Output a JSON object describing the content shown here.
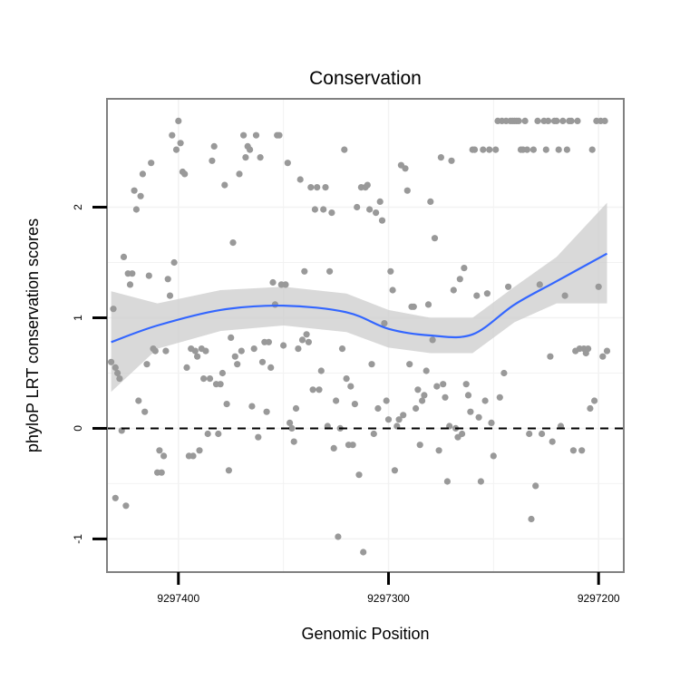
{
  "chart_data": {
    "type": "scatter",
    "title": "Conservation",
    "xlabel": "Genomic Position",
    "ylabel": "phyloP LRT conservation scores",
    "x_reversed": true,
    "xlim": [
      9297434,
      9297188
    ],
    "ylim": [
      -1.3,
      2.98
    ],
    "x_ticks": [
      9297400,
      9297300,
      9297200
    ],
    "x_tick_labels": [
      "9297400",
      "9297300",
      "9297200"
    ],
    "y_ticks": [
      -1,
      0,
      1,
      2
    ],
    "y_tick_labels": [
      "-1",
      "0",
      "1",
      "2"
    ],
    "reference_line": {
      "y": 0,
      "style": "dashed"
    },
    "grid": true,
    "colors": {
      "points": "#999999",
      "smooth": "#3366ff",
      "band": "#cccccc",
      "panel_border": "#808080",
      "grid": "#f2f2f2"
    },
    "points": [
      [
        9297431,
        1.08
      ],
      [
        9297432,
        0.6
      ],
      [
        9297430,
        0.55
      ],
      [
        9297429,
        0.5
      ],
      [
        9297428,
        0.45
      ],
      [
        9297430,
        -0.63
      ],
      [
        9297425,
        -0.7
      ],
      [
        9297427,
        -0.02
      ],
      [
        9297426,
        1.55
      ],
      [
        9297424,
        1.4
      ],
      [
        9297423,
        1.3
      ],
      [
        9297422,
        1.4
      ],
      [
        9297421,
        2.15
      ],
      [
        9297420,
        1.98
      ],
      [
        9297419,
        0.25
      ],
      [
        9297418,
        2.1
      ],
      [
        9297417,
        2.3
      ],
      [
        9297416,
        0.15
      ],
      [
        9297415,
        0.58
      ],
      [
        9297414,
        1.38
      ],
      [
        9297413,
        2.4
      ],
      [
        9297412,
        0.72
      ],
      [
        9297411,
        0.7
      ],
      [
        9297410,
        -0.4
      ],
      [
        9297409,
        -0.2
      ],
      [
        9297408,
        -0.4
      ],
      [
        9297407,
        -0.25
      ],
      [
        9297406,
        0.7
      ],
      [
        9297405,
        1.35
      ],
      [
        9297404,
        1.2
      ],
      [
        9297403,
        2.65
      ],
      [
        9297402,
        1.5
      ],
      [
        9297401,
        2.52
      ],
      [
        9297400,
        2.78
      ],
      [
        9297399,
        2.58
      ],
      [
        9297398,
        2.32
      ],
      [
        9297397,
        2.3
      ],
      [
        9297396,
        0.55
      ],
      [
        9297395,
        -0.25
      ],
      [
        9297394,
        0.72
      ],
      [
        9297393,
        -0.25
      ],
      [
        9297392,
        0.7
      ],
      [
        9297391,
        0.65
      ],
      [
        9297390,
        -0.2
      ],
      [
        9297389,
        0.72
      ],
      [
        9297388,
        0.45
      ],
      [
        9297387,
        0.7
      ],
      [
        9297386,
        -0.05
      ],
      [
        9297385,
        0.45
      ],
      [
        9297384,
        2.42
      ],
      [
        9297383,
        2.55
      ],
      [
        9297382,
        0.4
      ],
      [
        9297381,
        -0.05
      ],
      [
        9297380,
        0.4
      ],
      [
        9297379,
        0.5
      ],
      [
        9297378,
        2.2
      ],
      [
        9297377,
        0.22
      ],
      [
        9297376,
        -0.38
      ],
      [
        9297375,
        0.82
      ],
      [
        9297374,
        1.68
      ],
      [
        9297373,
        0.65
      ],
      [
        9297372,
        0.58
      ],
      [
        9297371,
        2.3
      ],
      [
        9297370,
        0.7
      ],
      [
        9297369,
        2.65
      ],
      [
        9297368,
        2.45
      ],
      [
        9297367,
        2.55
      ],
      [
        9297366,
        2.52
      ],
      [
        9297365,
        0.2
      ],
      [
        9297364,
        0.72
      ],
      [
        9297363,
        2.65
      ],
      [
        9297362,
        -0.08
      ],
      [
        9297361,
        2.45
      ],
      [
        9297360,
        0.6
      ],
      [
        9297359,
        0.78
      ],
      [
        9297358,
        0.15
      ],
      [
        9297357,
        0.78
      ],
      [
        9297356,
        0.55
      ],
      [
        9297355,
        1.32
      ],
      [
        9297354,
        1.12
      ],
      [
        9297353,
        2.65
      ],
      [
        9297352,
        2.65
      ],
      [
        9297351,
        1.3
      ],
      [
        9297350,
        0.75
      ],
      [
        9297349,
        1.3
      ],
      [
        9297348,
        2.4
      ],
      [
        9297347,
        0.05
      ],
      [
        9297346,
        0.0
      ],
      [
        9297345,
        -0.12
      ],
      [
        9297344,
        0.18
      ],
      [
        9297343,
        0.72
      ],
      [
        9297342,
        2.25
      ],
      [
        9297341,
        0.8
      ],
      [
        9297340,
        1.42
      ],
      [
        9297339,
        0.85
      ],
      [
        9297338,
        0.78
      ],
      [
        9297337,
        2.18
      ],
      [
        9297336,
        0.35
      ],
      [
        9297335,
        1.98
      ],
      [
        9297334,
        2.18
      ],
      [
        9297333,
        0.35
      ],
      [
        9297332,
        0.52
      ],
      [
        9297331,
        1.98
      ],
      [
        9297330,
        2.18
      ],
      [
        9297329,
        0.02
      ],
      [
        9297328,
        1.42
      ],
      [
        9297327,
        1.95
      ],
      [
        9297326,
        -0.18
      ],
      [
        9297325,
        0.25
      ],
      [
        9297324,
        -0.98
      ],
      [
        9297323,
        0.0
      ],
      [
        9297322,
        0.72
      ],
      [
        9297321,
        2.52
      ],
      [
        9297320,
        0.45
      ],
      [
        9297319,
        -0.15
      ],
      [
        9297318,
        0.38
      ],
      [
        9297317,
        -0.15
      ],
      [
        9297316,
        0.22
      ],
      [
        9297315,
        2.0
      ],
      [
        9297314,
        -0.42
      ],
      [
        9297313,
        2.18
      ],
      [
        9297312,
        -1.12
      ],
      [
        9297311,
        2.18
      ],
      [
        9297310,
        2.2
      ],
      [
        9297309,
        1.98
      ],
      [
        9297308,
        0.58
      ],
      [
        9297307,
        -0.05
      ],
      [
        9297306,
        1.95
      ],
      [
        9297305,
        0.18
      ],
      [
        9297304,
        2.05
      ],
      [
        9297303,
        1.88
      ],
      [
        9297302,
        0.95
      ],
      [
        9297301,
        0.25
      ],
      [
        9297300,
        0.08
      ],
      [
        9297299,
        1.42
      ],
      [
        9297298,
        1.25
      ],
      [
        9297297,
        -0.38
      ],
      [
        9297296,
        0.02
      ],
      [
        9297295,
        0.08
      ],
      [
        9297294,
        2.38
      ],
      [
        9297293,
        0.12
      ],
      [
        9297292,
        2.35
      ],
      [
        9297291,
        2.15
      ],
      [
        9297290,
        0.58
      ],
      [
        9297289,
        1.1
      ],
      [
        9297288,
        1.1
      ],
      [
        9297287,
        0.18
      ],
      [
        9297286,
        0.35
      ],
      [
        9297285,
        -0.15
      ],
      [
        9297284,
        0.25
      ],
      [
        9297283,
        0.3
      ],
      [
        9297282,
        0.52
      ],
      [
        9297281,
        1.12
      ],
      [
        9297280,
        2.05
      ],
      [
        9297279,
        0.8
      ],
      [
        9297278,
        1.72
      ],
      [
        9297277,
        0.38
      ],
      [
        9297276,
        -0.2
      ],
      [
        9297275,
        2.45
      ],
      [
        9297274,
        0.4
      ],
      [
        9297273,
        0.28
      ],
      [
        9297272,
        -0.48
      ],
      [
        9297271,
        0.02
      ],
      [
        9297270,
        2.42
      ],
      [
        9297269,
        1.25
      ],
      [
        9297268,
        0.0
      ],
      [
        9297267,
        -0.08
      ],
      [
        9297266,
        1.35
      ],
      [
        9297265,
        -0.05
      ],
      [
        9297264,
        1.45
      ],
      [
        9297263,
        0.4
      ],
      [
        9297262,
        0.3
      ],
      [
        9297261,
        0.15
      ],
      [
        9297260,
        2.52
      ],
      [
        9297259,
        2.52
      ],
      [
        9297258,
        1.2
      ],
      [
        9297257,
        0.1
      ],
      [
        9297256,
        -0.48
      ],
      [
        9297255,
        2.52
      ],
      [
        9297254,
        0.25
      ],
      [
        9297253,
        1.22
      ],
      [
        9297252,
        2.52
      ],
      [
        9297251,
        0.05
      ],
      [
        9297250,
        -0.25
      ],
      [
        9297249,
        2.52
      ],
      [
        9297248,
        2.78
      ],
      [
        9297247,
        0.28
      ],
      [
        9297246,
        2.78
      ],
      [
        9297245,
        0.5
      ],
      [
        9297244,
        2.78
      ],
      [
        9297243,
        1.28
      ],
      [
        9297242,
        2.78
      ],
      [
        9297241,
        2.78
      ],
      [
        9297240,
        2.78
      ],
      [
        9297239,
        2.78
      ],
      [
        9297238,
        2.78
      ],
      [
        9297237,
        2.52
      ],
      [
        9297236,
        2.52
      ],
      [
        9297235,
        2.78
      ],
      [
        9297234,
        2.52
      ],
      [
        9297233,
        -0.05
      ],
      [
        9297232,
        -0.82
      ],
      [
        9297231,
        2.52
      ],
      [
        9297230,
        -0.52
      ],
      [
        9297229,
        2.78
      ],
      [
        9297228,
        1.3
      ],
      [
        9297227,
        -0.05
      ],
      [
        9297226,
        2.78
      ],
      [
        9297225,
        2.52
      ],
      [
        9297224,
        2.78
      ],
      [
        9297223,
        0.65
      ],
      [
        9297222,
        -0.12
      ],
      [
        9297221,
        2.78
      ],
      [
        9297220,
        2.78
      ],
      [
        9297219,
        2.52
      ],
      [
        9297218,
        0.02
      ],
      [
        9297217,
        2.78
      ],
      [
        9297216,
        1.2
      ],
      [
        9297215,
        2.52
      ],
      [
        9297214,
        2.78
      ],
      [
        9297213,
        2.78
      ],
      [
        9297212,
        -0.2
      ],
      [
        9297211,
        0.7
      ],
      [
        9297210,
        2.78
      ],
      [
        9297209,
        0.72
      ],
      [
        9297208,
        -0.2
      ],
      [
        9297207,
        0.72
      ],
      [
        9297206,
        0.68
      ],
      [
        9297205,
        0.72
      ],
      [
        9297204,
        0.18
      ],
      [
        9297203,
        2.52
      ],
      [
        9297202,
        0.25
      ],
      [
        9297201,
        2.78
      ],
      [
        9297200,
        1.28
      ],
      [
        9297199,
        2.78
      ],
      [
        9297198,
        0.65
      ],
      [
        9297197,
        2.78
      ],
      [
        9297196,
        0.7
      ]
    ],
    "smooth": {
      "x": [
        9297432,
        9297410,
        9297380,
        9297350,
        9297320,
        9297300,
        9297280,
        9297260,
        9297240,
        9297220,
        9297196
      ],
      "y": [
        0.78,
        0.93,
        1.07,
        1.11,
        1.05,
        0.9,
        0.84,
        0.85,
        1.12,
        1.33,
        1.58
      ],
      "lower": [
        0.33,
        0.72,
        0.88,
        0.93,
        0.87,
        0.73,
        0.68,
        0.68,
        0.96,
        1.13,
        1.13
      ],
      "upper": [
        1.24,
        1.13,
        1.25,
        1.28,
        1.22,
        1.07,
        1.0,
        1.0,
        1.28,
        1.55,
        2.04
      ]
    }
  }
}
